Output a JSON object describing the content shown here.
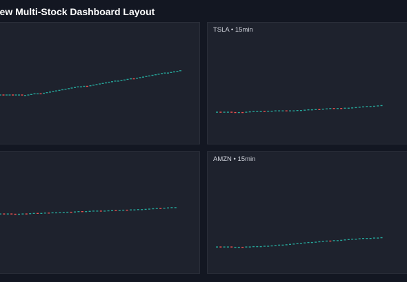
{
  "page": {
    "title": "gView Multi-Stock Dashboard Layout"
  },
  "colors": {
    "up": "#26a69a",
    "down": "#ef5350",
    "panel_bg": "#1e222d",
    "page_bg": "#131722"
  },
  "panels": [
    {
      "id": "tl",
      "label": "",
      "trend": [
        0,
        0,
        0,
        0,
        -1,
        1,
        0,
        -1,
        0,
        1,
        1,
        1,
        0,
        0,
        1,
        1,
        1,
        1,
        1,
        1,
        1,
        1,
        1,
        1,
        1,
        1,
        0,
        1,
        0,
        1,
        1,
        1,
        1,
        1,
        1,
        1,
        1,
        1,
        0,
        1,
        1,
        1,
        1,
        0,
        1,
        1,
        1,
        1,
        1,
        1,
        1,
        1,
        1,
        1,
        0,
        1,
        1,
        1,
        1
      ]
    },
    {
      "id": "tr",
      "label": "TSLA • 15min",
      "trend": [
        0,
        0,
        0,
        0,
        -1,
        -1,
        1,
        0,
        1,
        1,
        1,
        0,
        0,
        0,
        1,
        0,
        1,
        0,
        0,
        0,
        0,
        0,
        1,
        0,
        1,
        1,
        0,
        1,
        0,
        1,
        1,
        1,
        -1,
        1,
        0,
        1,
        0,
        1,
        1,
        1,
        1,
        1,
        0,
        1,
        1,
        1
      ]
    },
    {
      "id": "bl",
      "label": "",
      "trend": [
        0,
        0,
        0,
        -1,
        0,
        0,
        1,
        0,
        1,
        1,
        0,
        0,
        1,
        0,
        1,
        0,
        1,
        0,
        1,
        0,
        1,
        1,
        0,
        0,
        1,
        1,
        0,
        -1,
        1,
        1,
        1,
        0,
        0,
        1,
        0,
        1,
        0,
        1,
        0,
        1,
        1,
        1,
        1,
        0,
        1,
        1,
        1,
        0
      ]
    },
    {
      "id": "br",
      "label": "AMZN • 15min",
      "trend": [
        0,
        0,
        0,
        0,
        -1,
        0,
        0,
        0,
        1,
        0,
        1,
        0,
        0,
        1,
        0,
        1,
        1,
        1,
        0,
        1,
        1,
        1,
        1,
        1,
        1,
        1,
        0,
        1,
        1,
        1,
        1,
        0,
        1,
        0,
        1,
        1,
        1,
        1,
        0,
        1,
        1,
        0,
        0,
        1,
        0,
        1
      ]
    }
  ]
}
